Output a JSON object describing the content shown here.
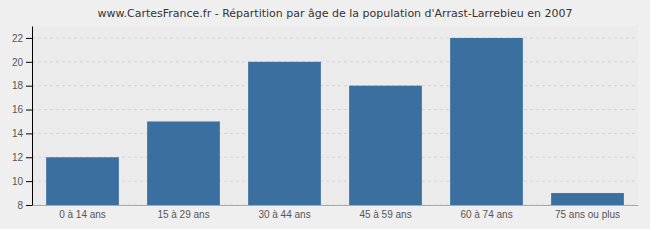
{
  "chart_data": {
    "type": "bar",
    "title": "www.CartesFrance.fr - Répartition par âge de la population d'Arrast-Larrebieu en 2007",
    "categories": [
      "0 à 14 ans",
      "15 à 29 ans",
      "30 à 44 ans",
      "45 à 59 ans",
      "60 à 74 ans",
      "75 ans ou plus"
    ],
    "values": [
      12,
      15,
      20,
      18,
      22,
      9
    ],
    "color": "#3a6f9f",
    "ylim": [
      8,
      23
    ],
    "yticks": [
      8,
      10,
      12,
      14,
      16,
      18,
      20,
      22
    ],
    "grid": true
  }
}
